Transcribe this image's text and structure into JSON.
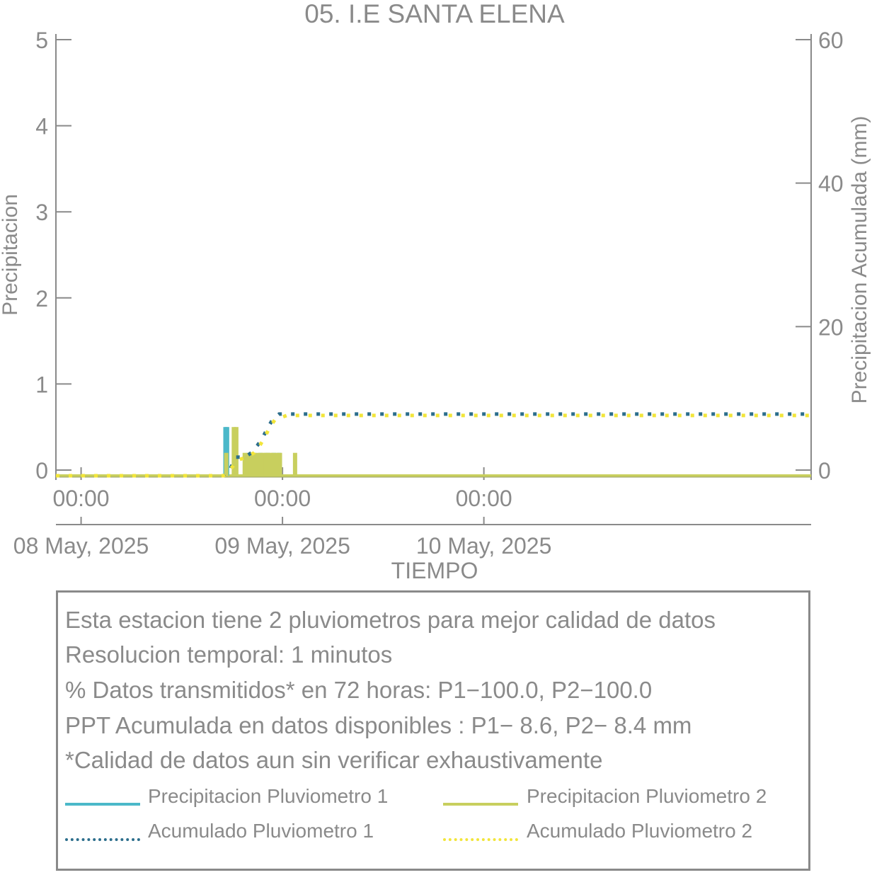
{
  "chart_data": {
    "type": "bar",
    "title": "05. I.E SANTA ELENA",
    "xlabel": "TIEMPO",
    "ylabel_left": "Precipitacion",
    "ylabel_right": "Precipitacion Acumulada (mm)",
    "ylim_left": [
      0,
      5
    ],
    "ylim_right": [
      0,
      60
    ],
    "yticks_left": [
      "0",
      "1",
      "2",
      "3",
      "4",
      "5"
    ],
    "yticks_right": [
      "0",
      "20",
      "40",
      "60"
    ],
    "xlim_hours": [
      -3,
      87
    ],
    "xticks": [
      {
        "hour": 0,
        "time": "00:00",
        "date": "08 May, 2025"
      },
      {
        "hour": 24,
        "time": "00:00",
        "date": "09 May, 2025"
      },
      {
        "hour": 48,
        "time": "00:00",
        "date": "10 May, 2025"
      }
    ],
    "grid": false,
    "series": [
      {
        "name": "Precipitacion Pluviometro 1",
        "kind": "bars",
        "axis": "left",
        "color": "#4bb8c9",
        "points": [
          [
            17.2,
            0.5
          ],
          [
            17.4,
            0.5
          ],
          [
            18.3,
            0.2
          ],
          [
            20.6,
            0.2
          ],
          [
            21.4,
            0.2
          ],
          [
            22.2,
            0.2
          ],
          [
            23.0,
            0.2
          ],
          [
            23.6,
            0.2
          ]
        ]
      },
      {
        "name": "Precipitacion Pluviometro 2",
        "kind": "bars",
        "axis": "left",
        "color": "#c8cf5e",
        "points": [
          [
            17.3,
            0.2
          ],
          [
            18.2,
            0.5
          ],
          [
            18.5,
            0.5
          ],
          [
            19.5,
            0.2
          ],
          [
            19.9,
            0.2
          ],
          [
            20.2,
            0.2
          ],
          [
            20.6,
            0.2
          ],
          [
            21.0,
            0.2
          ],
          [
            21.4,
            0.2
          ],
          [
            21.7,
            0.2
          ],
          [
            22.0,
            0.2
          ],
          [
            22.3,
            0.2
          ],
          [
            22.6,
            0.2
          ],
          [
            22.9,
            0.2
          ],
          [
            23.3,
            0.2
          ],
          [
            23.7,
            0.2
          ],
          [
            25.5,
            0.2
          ]
        ]
      },
      {
        "name": "Acumulado Pluviometro 1",
        "kind": "dotted-line",
        "axis": "right",
        "color": "#2c6e8c",
        "points": [
          [
            -3,
            0
          ],
          [
            17.0,
            0
          ],
          [
            17.3,
            0.6
          ],
          [
            17.8,
            1.0
          ],
          [
            18.4,
            2.6
          ],
          [
            19.5,
            2.6
          ],
          [
            20.3,
            3.2
          ],
          [
            21.0,
            4.2
          ],
          [
            21.6,
            5.2
          ],
          [
            22.2,
            6.6
          ],
          [
            22.8,
            7.8
          ],
          [
            23.6,
            8.6
          ],
          [
            87,
            8.6
          ]
        ]
      },
      {
        "name": "Acumulado Pluviometro 2",
        "kind": "dotted-line",
        "axis": "right",
        "color": "#f2e53a",
        "points": [
          [
            -3,
            0
          ],
          [
            17.0,
            0
          ],
          [
            17.4,
            0.4
          ],
          [
            18.0,
            1.2
          ],
          [
            18.7,
            2.2
          ],
          [
            19.8,
            2.6
          ],
          [
            20.6,
            3.2
          ],
          [
            21.3,
            4.2
          ],
          [
            21.9,
            5.4
          ],
          [
            22.5,
            6.8
          ],
          [
            23.1,
            7.8
          ],
          [
            24.5,
            8.4
          ],
          [
            87,
            8.4
          ]
        ]
      }
    ]
  },
  "info": {
    "lines": [
      "Esta estacion tiene 2 pluviometros para mejor calidad de datos",
      "Resolucion temporal: 1 minutos",
      "% Datos transmitidos* en 72 horas: P1−100.0, P2−100.0",
      "PPT Acumulada en datos disponibles : P1−  8.6, P2−  8.4 mm",
      "*Calidad de datos aun sin verificar exhaustivamente"
    ],
    "legend": [
      {
        "label": "Precipitacion Pluviometro 1",
        "color": "#4bb8c9",
        "style": "solid"
      },
      {
        "label": "Precipitacion Pluviometro 2",
        "color": "#c8cf5e",
        "style": "solid"
      },
      {
        "label": "Acumulado Pluviometro 1",
        "color": "#2c6e8c",
        "style": "dotted"
      },
      {
        "label": "Acumulado Pluviometro 2",
        "color": "#f2e53a",
        "style": "dotted"
      }
    ]
  }
}
